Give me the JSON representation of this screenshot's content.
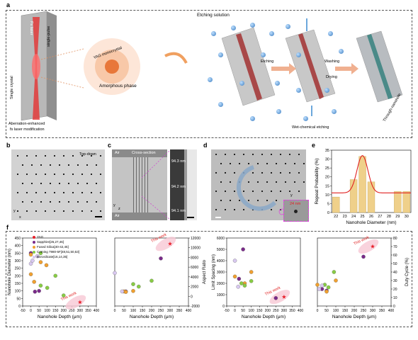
{
  "panels": {
    "a": {
      "label": "a",
      "laser_text": "Fs laser",
      "single_pulse": "single-pulse",
      "single_crystal": "Single crystal",
      "caption_lines": [
        "Aberration-enhanced",
        "fs laser modification"
      ],
      "yag_text": "YAG monocrystal",
      "amorphous": "Amorphous phase",
      "etching_solution": "Etching solution",
      "etching": "Etching",
      "washing": "Washing",
      "drying": "Drying",
      "wet_chem": "Wet-chemical etching",
      "through": "Through-nanohole"
    },
    "b": {
      "label": "b",
      "title": "Top-down",
      "axis_y": "y",
      "axis_x": "x"
    },
    "c": {
      "label": "c",
      "title": "Cross-section",
      "air_top": "Air",
      "air_bottom": "Air",
      "m1": "94.3 nm",
      "m2": "94.2 nm",
      "m3": "94.1 nm",
      "axis_y": "y",
      "axis_z": "z"
    },
    "d": {
      "label": "d",
      "measure": "24 nm",
      "axis_y": "y",
      "axis_x": "x"
    },
    "e": {
      "label": "e"
    },
    "f": {
      "label": "f",
      "legend": [
        "YAG",
        "Sapphire[26,27,46]",
        "Fused Silica[40-42,45]",
        "Corning 7980-5F[48,51,50,53]",
        "Borosilicate[16,14,35]"
      ],
      "legend_colors": [
        "#e8202a",
        "#7a2a8a",
        "#f0a030",
        "#88cc44",
        "#d8c8f0"
      ],
      "this_work": "This work"
    }
  },
  "chart_data": [
    {
      "type": "bar",
      "panel": "e",
      "categories": [
        "22",
        "23",
        "24",
        "25",
        "26",
        "27",
        "28",
        "29",
        "30"
      ],
      "values": [
        8.7,
        0,
        18.5,
        31.5,
        17.2,
        0,
        0,
        11.8,
        11.8
      ],
      "xlabel": "Nanohole Diameter (nm)",
      "ylabel": "Repeat Probability (%)",
      "ylim": [
        0,
        35
      ],
      "yticks": [
        0,
        5,
        10,
        15,
        20,
        25,
        30,
        35
      ],
      "fit_curve": "gaussian",
      "fit": {
        "baseline": 11,
        "peak": 32,
        "center": 25,
        "sigma": 0.62
      }
    },
    {
      "type": "scatter",
      "panel": "f1",
      "xlabel": "Nanohole Depth (μm)",
      "ylabel": "Nanohole Diameter (nm)",
      "xlim": [
        -50,
        400
      ],
      "ylim": [
        0,
        450
      ],
      "xticks": [
        -50,
        0,
        50,
        100,
        150,
        200,
        250,
        300,
        350,
        400
      ],
      "yticks": [
        0,
        50,
        100,
        150,
        200,
        250,
        300,
        350,
        400,
        450
      ],
      "series": [
        {
          "name": "YAG",
          "points": [
            [
              300,
              25
            ]
          ]
        },
        {
          "name": "Sapphire",
          "points": [
            [
              0,
              350
            ],
            [
              25,
              95
            ],
            [
              50,
              100
            ]
          ]
        },
        {
          "name": "Fused Silica",
          "points": [
            [
              0,
              340
            ],
            [
              0,
              210
            ],
            [
              60,
              290
            ],
            [
              95,
              270
            ],
            [
              20,
              160
            ]
          ]
        },
        {
          "name": "Corning 7980-5F",
          "points": [
            [
              60,
              350
            ],
            [
              100,
              120
            ],
            [
              60,
              135
            ],
            [
              200,
              70
            ],
            [
              150,
              200
            ]
          ]
        },
        {
          "name": "Borosilicate",
          "points": [
            [
              0,
              280
            ],
            [
              10,
              300
            ],
            [
              40,
              330
            ]
          ]
        }
      ]
    },
    {
      "type": "scatter",
      "panel": "f2",
      "xlabel": "Nanohole Depth (μm)",
      "ylabel": "Aspect Ratio",
      "xlim": [
        0,
        400
      ],
      "ylim": [
        -2000,
        12000
      ],
      "xticks": [
        0,
        50,
        100,
        150,
        200,
        250,
        300,
        350,
        400
      ],
      "yticks": [
        -2000,
        0,
        2000,
        4000,
        6000,
        8000,
        10000,
        12000
      ],
      "series": [
        {
          "name": "YAG",
          "points": [
            [
              300,
              10800
            ]
          ]
        },
        {
          "name": "Sapphire",
          "points": [
            [
              250,
              7800
            ],
            [
              60,
              1000
            ]
          ]
        },
        {
          "name": "Fused Silica",
          "points": [
            [
              50,
              1000
            ],
            [
              100,
              1100
            ],
            [
              60,
              900
            ]
          ]
        },
        {
          "name": "Corning 7980-5F",
          "points": [
            [
              100,
              2500
            ],
            [
              200,
              3200
            ],
            [
              130,
              2000
            ]
          ]
        },
        {
          "name": "Borosilicate",
          "points": [
            [
              40,
              1000
            ],
            [
              0,
              4800
            ]
          ]
        }
      ]
    },
    {
      "type": "scatter",
      "panel": "f3",
      "xlabel": "Nanohole Depth (μm)",
      "ylabel": "Limit Spacing (nm)",
      "xlim": [
        -50,
        400
      ],
      "ylim": [
        0,
        6000
      ],
      "xticks": [
        -50,
        0,
        50,
        100,
        150,
        200,
        250,
        300,
        350,
        400
      ],
      "yticks": [
        0,
        1000,
        2000,
        3000,
        4000,
        5000,
        6000
      ],
      "series": [
        {
          "name": "YAG",
          "points": [
            [
              300,
              800
            ]
          ]
        },
        {
          "name": "Sapphire",
          "points": [
            [
              250,
              700
            ],
            [
              50,
              5000
            ],
            [
              25,
              2400
            ]
          ]
        },
        {
          "name": "Fused Silica",
          "points": [
            [
              0,
              2600
            ],
            [
              100,
              3000
            ],
            [
              60,
              2000
            ]
          ]
        },
        {
          "name": "Corning 7980-5F",
          "points": [
            [
              60,
              1800
            ],
            [
              100,
              2200
            ],
            [
              40,
              2000
            ]
          ]
        },
        {
          "name": "Borosilicate",
          "points": [
            [
              0,
              4000
            ],
            [
              20,
              1700
            ]
          ]
        }
      ]
    },
    {
      "type": "scatter",
      "panel": "f4",
      "xlabel": "Nanohole Depth (μm)",
      "ylabel": "Duty Cycle (%)",
      "xlim": [
        0,
        400
      ],
      "ylim": [
        0,
        80
      ],
      "xticks": [
        0,
        50,
        100,
        150,
        200,
        250,
        300,
        350,
        400
      ],
      "yticks": [
        0,
        10,
        20,
        30,
        40,
        50,
        60,
        70,
        80
      ],
      "series": [
        {
          "name": "YAG",
          "points": [
            [
              300,
              70
            ]
          ]
        },
        {
          "name": "Sapphire",
          "points": [
            [
              250,
              58
            ],
            [
              25,
              20
            ],
            [
              50,
              18
            ]
          ]
        },
        {
          "name": "Fused Silica",
          "points": [
            [
              0,
              25
            ],
            [
              50,
              17
            ],
            [
              100,
              30
            ]
          ]
        },
        {
          "name": "Corning 7980-5F",
          "points": [
            [
              60,
              22
            ],
            [
              90,
              40
            ],
            [
              40,
              25
            ]
          ]
        },
        {
          "name": "Borosilicate",
          "points": [
            [
              10,
              20
            ],
            [
              25,
              24
            ]
          ]
        }
      ]
    }
  ]
}
